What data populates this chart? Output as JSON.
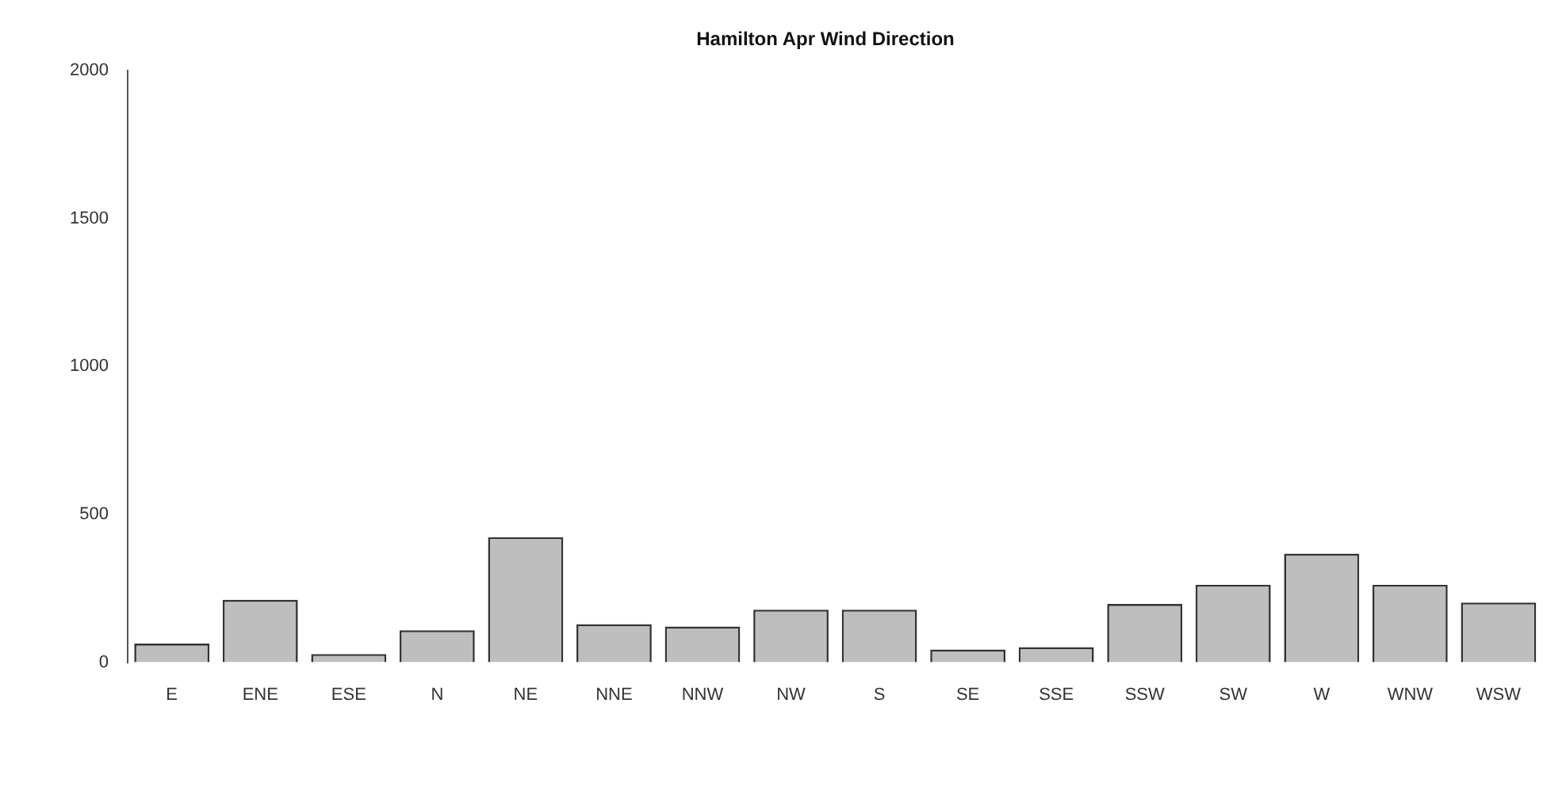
{
  "chart_data": {
    "type": "bar",
    "title": "Hamilton Apr Wind Direction",
    "categories": [
      "E",
      "ENE",
      "ESE",
      "N",
      "NE",
      "NNE",
      "NNW",
      "NW",
      "S",
      "SE",
      "SSE",
      "SSW",
      "SW",
      "W",
      "WNW",
      "WSW"
    ],
    "values": [
      63,
      211,
      28,
      108,
      423,
      129,
      121,
      178,
      178,
      43,
      51,
      197,
      262,
      367,
      262,
      202
    ],
    "color": "#bebebe",
    "ylim": [
      0,
      2000
    ],
    "yticks": [
      0,
      500,
      1000,
      1500,
      2000
    ],
    "grid": false,
    "legend": false
  }
}
